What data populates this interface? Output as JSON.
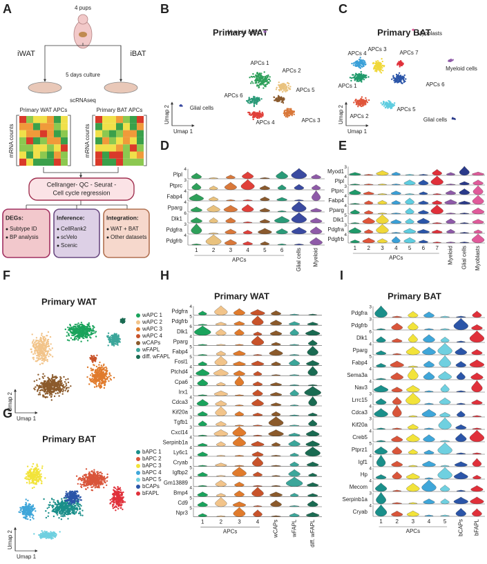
{
  "panels": {
    "A": {
      "letter": "A",
      "pups": "4 pups",
      "left": "iWAT",
      "right": "iBAT",
      "culture": "5 days culture",
      "seq": "scRNAseq",
      "wat_apcs": "Primary WAT APCs",
      "bat_apcs": "Primary BAT APCs",
      "counts": "mRNA counts",
      "pipeline": [
        "Cellranger- QC - Seurat -",
        "Cell cycle regression"
      ],
      "boxes": [
        {
          "title": "DEGs:",
          "items": [
            "Subtype ID",
            "BP analysis"
          ]
        },
        {
          "title": "Inference:",
          "items": [
            "CellRank2",
            "scVelo",
            "Scenic"
          ]
        },
        {
          "title": "Integration:",
          "items": [
            "WAT + BAT",
            "Other datasets"
          ]
        }
      ]
    },
    "B": {
      "letter": "B",
      "title": "Primary WAT",
      "xlabel": "Umap 1",
      "ylabel": "Umap 2",
      "clusters": [
        {
          "label": "Myeloid cells",
          "color": "#8e5aa8"
        },
        {
          "label": "APCs 1",
          "color": "#2ea05a"
        },
        {
          "label": "APCs 2",
          "color": "#e9c27e"
        },
        {
          "label": "APCs 5",
          "color": "#8a5a2e"
        },
        {
          "label": "APCs 6",
          "color": "#2a9a78"
        },
        {
          "label": "APCs 4",
          "color": "#e0403a"
        },
        {
          "label": "APCs 3",
          "color": "#d9783a"
        },
        {
          "label": "Glial cells",
          "color": "#3a4aa0"
        }
      ]
    },
    "C": {
      "letter": "C",
      "title": "Primary BAT",
      "xlabel": "Umap 1",
      "ylabel": "Umap 2",
      "clusters": [
        {
          "label": "Myoblasts",
          "color": "#e05a9a"
        },
        {
          "label": "APCs 4",
          "color": "#3aa0d8"
        },
        {
          "label": "APCs 3",
          "color": "#f0d83a"
        },
        {
          "label": "APCs 7",
          "color": "#e0303a"
        },
        {
          "label": "APCs 1",
          "color": "#1f9a6a"
        },
        {
          "label": "APCs 6",
          "color": "#2b55a8"
        },
        {
          "label": "Myeloid cells",
          "color": "#8e5aa8"
        },
        {
          "label": "APCs 2",
          "color": "#e0553a"
        },
        {
          "label": "APCs 5",
          "color": "#5fcde0"
        },
        {
          "label": "Glial cells",
          "color": "#2a3a8a"
        }
      ]
    },
    "D": {
      "letter": "D",
      "rows": [
        {
          "gene": "Plpl",
          "max": "4"
        },
        {
          "gene": "Ptprc",
          "max": "3"
        },
        {
          "gene": "Fabp4",
          "max": "4"
        },
        {
          "gene": "Pparg",
          "max": "4"
        },
        {
          "gene": "Dlk1",
          "max": "6"
        },
        {
          "gene": "Pdgfra",
          "max": "3"
        },
        {
          "gene": "Pdgfrb",
          "max": "4"
        }
      ],
      "numbers": [
        "1",
        "2",
        "3",
        "4",
        "5",
        "6"
      ],
      "group": "APCs",
      "extra": [
        "Glial cells",
        "Myeloid"
      ],
      "colors": [
        "#2ea05a",
        "#e9c27e",
        "#d9783a",
        "#e0403a",
        "#8a5a2e",
        "#2a9a78",
        "#3a4aa0",
        "#8e5aa8"
      ]
    },
    "E": {
      "letter": "E",
      "rows": [
        {
          "gene": "Myod1",
          "max": "3"
        },
        {
          "gene": "Plpl",
          "max": "4"
        },
        {
          "gene": "Ptprc",
          "max": "3"
        },
        {
          "gene": "Fabp4",
          "max": "4"
        },
        {
          "gene": "Pparg",
          "max": "4"
        },
        {
          "gene": "Dlk1",
          "max": "5"
        },
        {
          "gene": "Pdgfra",
          "max": "3"
        },
        {
          "gene": "Pdgfrb",
          "max": "4"
        }
      ],
      "numbers": [
        "1",
        "2",
        "3",
        "4",
        "5",
        "6",
        "7"
      ],
      "group": "APCs",
      "extra": [
        "Myeloid",
        "Glial cells",
        "Myoblasts"
      ],
      "colors": [
        "#1f9a6a",
        "#e0553a",
        "#f0d83a",
        "#3aa0d8",
        "#5fcde0",
        "#2b55a8",
        "#e0303a",
        "#8e5aa8",
        "#2a3a8a",
        "#e05a9a"
      ]
    },
    "F": {
      "letter": "F",
      "title": "Primary WAT",
      "xlabel": "Umap 1",
      "ylabel": "Umap 2",
      "legend": [
        {
          "name": "wAPC 1",
          "color": "#1aa35c"
        },
        {
          "name": "wAPC 2",
          "color": "#f2c48a"
        },
        {
          "name": "wAPC 3",
          "color": "#e07b2c"
        },
        {
          "name": "wAPC 4",
          "color": "#c8532a"
        },
        {
          "name": "wCAPs",
          "color": "#8b5a2b"
        },
        {
          "name": "wFAPL",
          "color": "#3ca69a"
        },
        {
          "name": "diff. wFAPL",
          "color": "#1a6b52"
        }
      ]
    },
    "G": {
      "letter": "G",
      "title": "Primary BAT",
      "xlabel": "Umap 1",
      "ylabel": "Umap 2",
      "legend": [
        {
          "name": "bAPC 1",
          "color": "#1a8f8a"
        },
        {
          "name": "bAPC 2",
          "color": "#d9553a"
        },
        {
          "name": "bAPC 3",
          "color": "#f2e33a"
        },
        {
          "name": "bAPC 4",
          "color": "#3fa6d9"
        },
        {
          "name": "bAPC 5",
          "color": "#6fd0e0"
        },
        {
          "name": "bCAPs",
          "color": "#2b55a8"
        },
        {
          "name": "bFAPL",
          "color": "#e0303a"
        }
      ]
    },
    "H": {
      "letter": "H",
      "title": "Primary WAT",
      "rows": [
        {
          "gene": "Pdgfra",
          "max": "4"
        },
        {
          "gene": "Pdgfrb",
          "max": "5"
        },
        {
          "gene": "Dlk1",
          "max": "6"
        },
        {
          "gene": "Pparg",
          "max": "4"
        },
        {
          "gene": "Fabp4",
          "max": "5"
        },
        {
          "gene": "Fosl1",
          "max": "5"
        },
        {
          "gene": "Ptchd4",
          "max": "4"
        },
        {
          "gene": "Cpa6",
          "max": "4"
        },
        {
          "gene": "Irx1",
          "max": "3"
        },
        {
          "gene": "Cdca3",
          "max": "4"
        },
        {
          "gene": "Kif20a",
          "max": "3"
        },
        {
          "gene": "Tgfb1",
          "max": "3"
        },
        {
          "gene": "Cxcl14",
          "max": "3"
        },
        {
          "gene": "Serpinb1a",
          "max": "4"
        },
        {
          "gene": "Ly6c1",
          "max": "4"
        },
        {
          "gene": "Cryab",
          "max": "4"
        },
        {
          "gene": "Igfbp2",
          "max": "5"
        },
        {
          "gene": "Gm13889",
          "max": "4"
        },
        {
          "gene": "Bmp4",
          "max": "4"
        },
        {
          "gene": "Cd9",
          "max": "5"
        },
        {
          "gene": "Npr3",
          "max": "5"
        }
      ],
      "numbers": [
        "1",
        "2",
        "3",
        "4"
      ],
      "group": "APCs",
      "extra": [
        "wCAPs",
        "wFAPL",
        "diff. wFAPL"
      ]
    },
    "I": {
      "letter": "I",
      "title": "Primary BAT",
      "rows": [
        {
          "gene": "Pdgfra",
          "max": "3"
        },
        {
          "gene": "Pdgfrb",
          "max": "3"
        },
        {
          "gene": "Dlk1",
          "max": "6"
        },
        {
          "gene": "Pparg",
          "max": "4"
        },
        {
          "gene": "Fabp4",
          "max": "5"
        },
        {
          "gene": "Sema3a",
          "max": "4"
        },
        {
          "gene": "Nav3",
          "max": "4"
        },
        {
          "gene": "Lrrc15",
          "max": "3"
        },
        {
          "gene": "Cdca3",
          "max": "4"
        },
        {
          "gene": "Kif20a",
          "max": "3"
        },
        {
          "gene": "Creb5",
          "max": "4"
        },
        {
          "gene": "Ptprz1",
          "max": "5"
        },
        {
          "gene": "Igf1",
          "max": "4"
        },
        {
          "gene": "Hp",
          "max": "4"
        },
        {
          "gene": "Mecom",
          "max": "4"
        },
        {
          "gene": "Serpinb1a",
          "max": "3"
        },
        {
          "gene": "Cryab",
          "max": "4"
        }
      ],
      "numbers": [
        "1",
        "2",
        "3",
        "4",
        "5"
      ],
      "group": "APCs",
      "extra": [
        "bCAPs",
        "bFAPL"
      ]
    }
  }
}
